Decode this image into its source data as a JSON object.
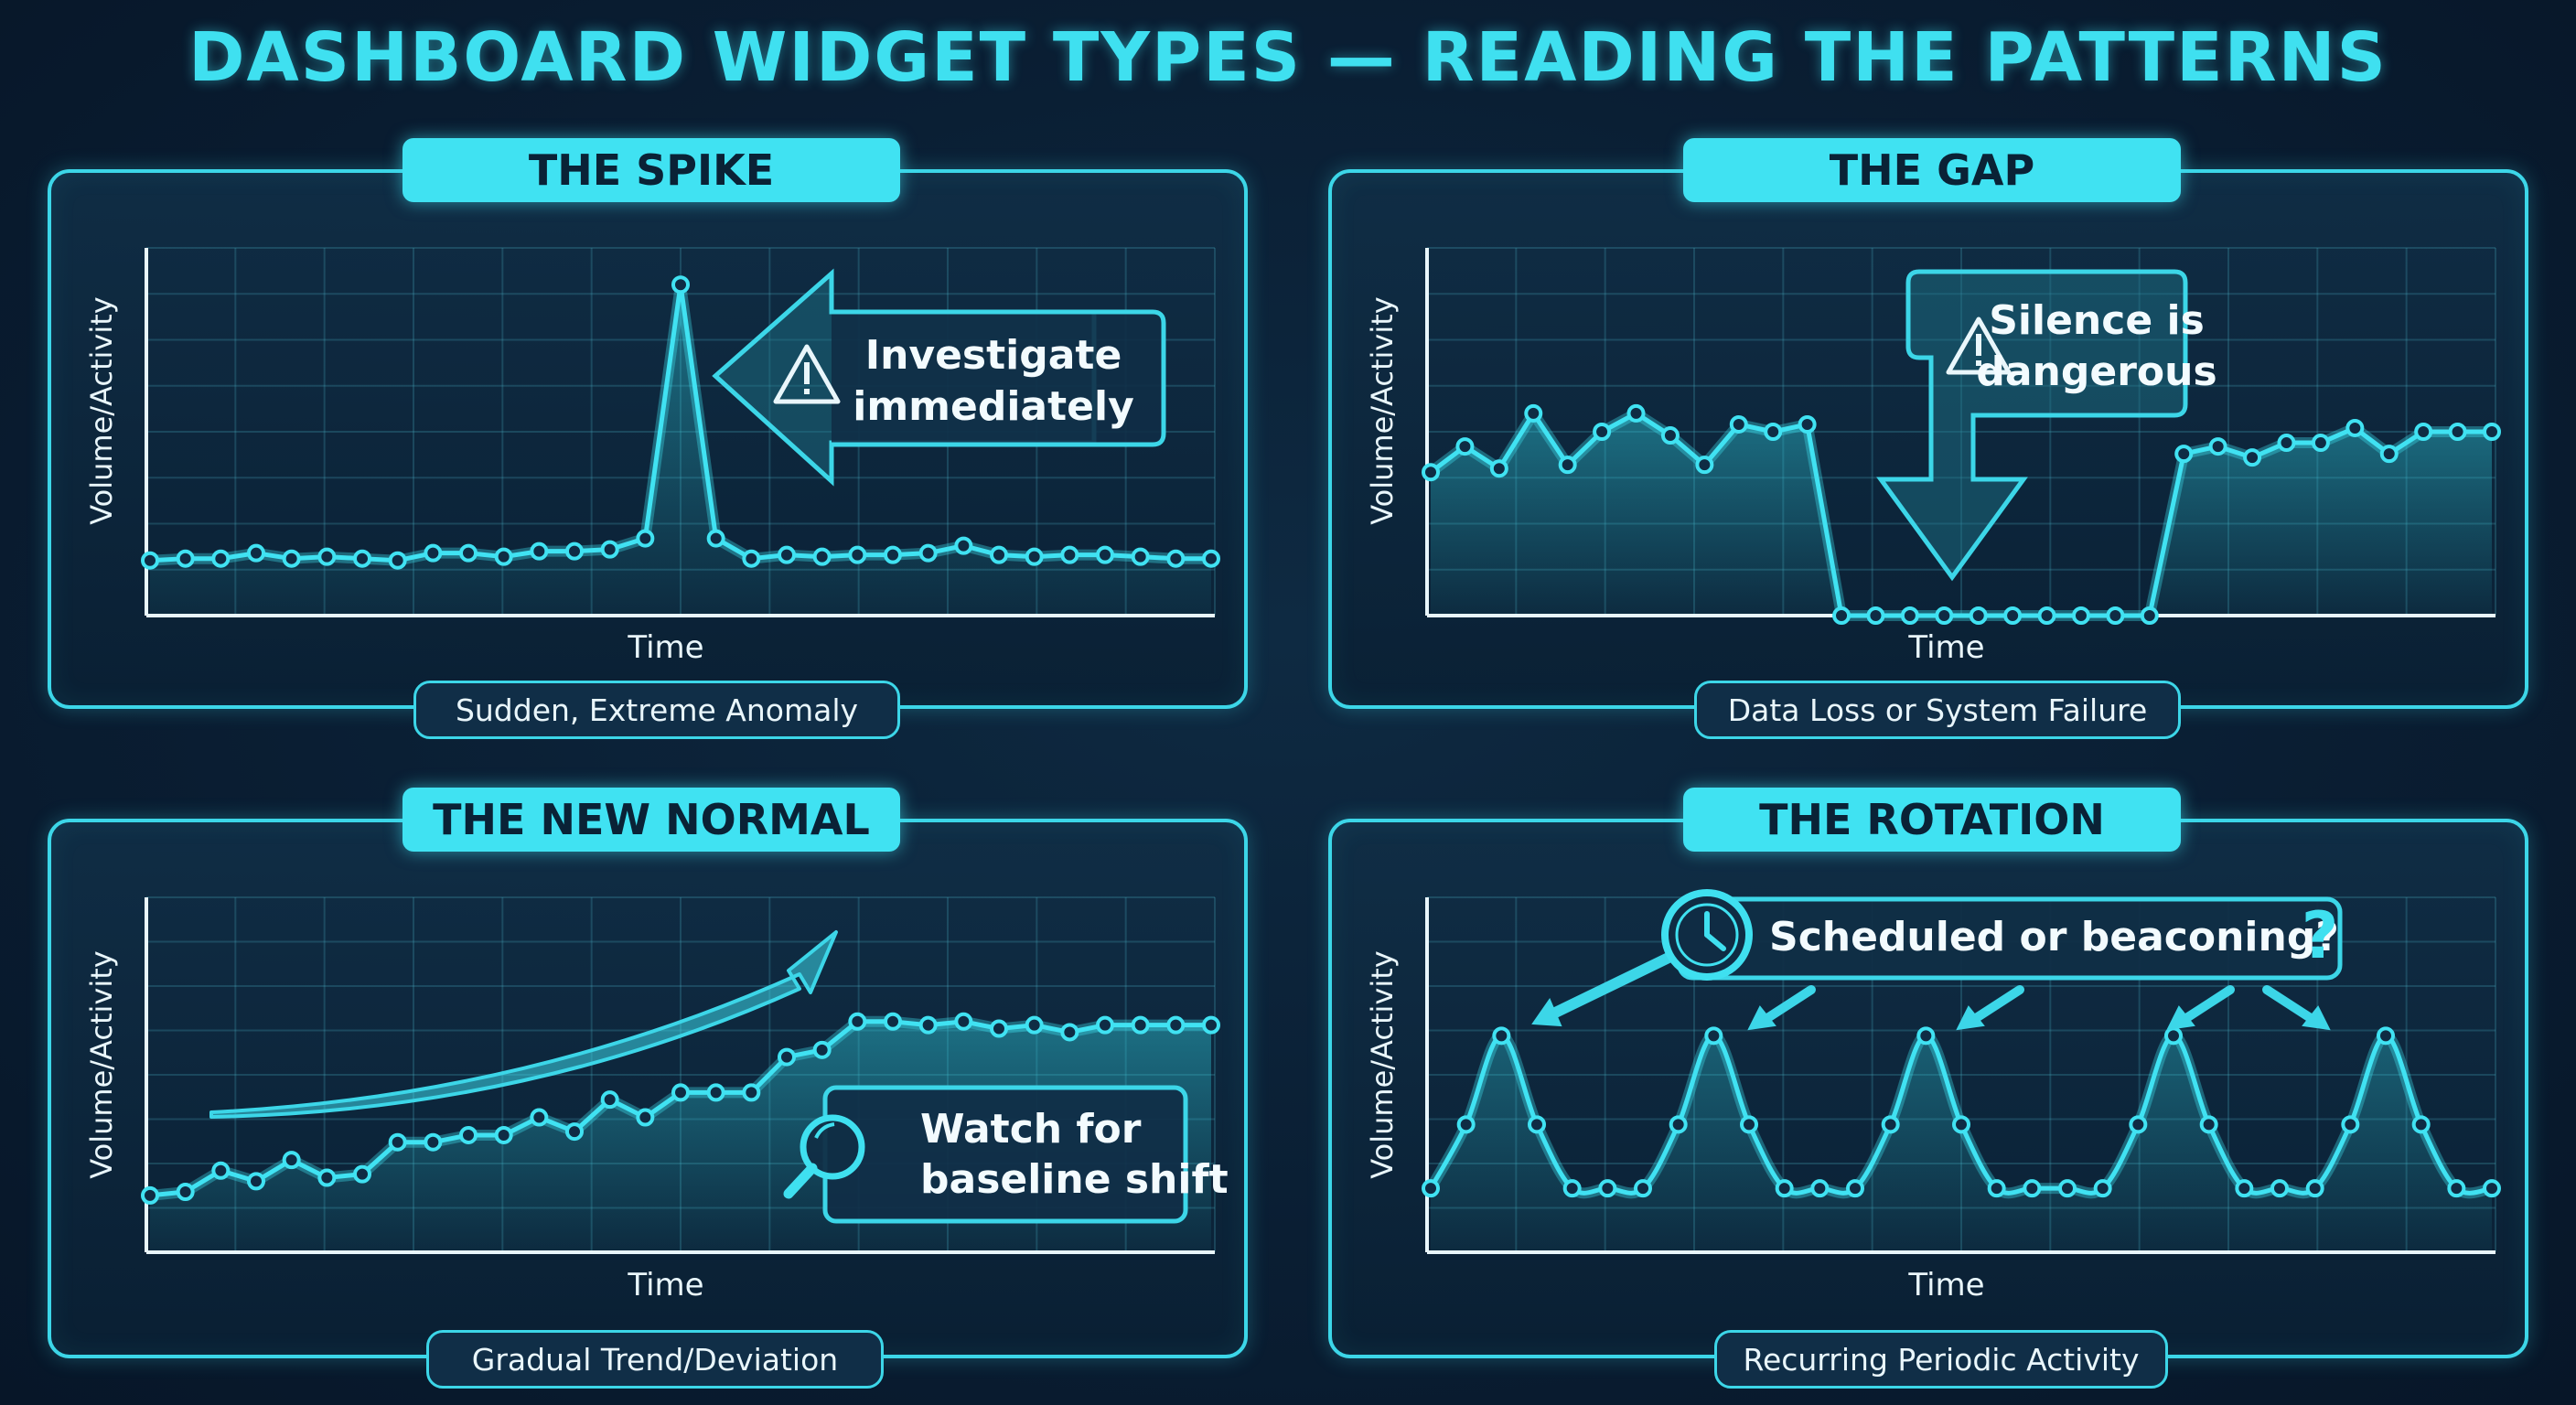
{
  "title": "DASHBOARD WIDGET TYPES — READING THE PATTERNS",
  "colors": {
    "accent": "#40e2f2",
    "background": "#0a1e33",
    "panel": "#102e47",
    "text": "#e9f6fb"
  },
  "panels": [
    {
      "key": "spike",
      "title": "THE SPIKE",
      "caption": "Sudden, Extreme Anomaly",
      "callout": [
        "Investigate",
        "immediately"
      ],
      "callout_icon": "warning-icon"
    },
    {
      "key": "gap",
      "title": "THE GAP",
      "caption": "Data Loss or System Failure",
      "callout": [
        "Silence is",
        "dangerous"
      ],
      "callout_icon": "warning-icon"
    },
    {
      "key": "new_normal",
      "title": "THE NEW NORMAL",
      "caption": "Gradual Trend/Deviation",
      "callout": [
        "Watch for",
        "baseline shift"
      ],
      "callout_icon": "magnifier-icon"
    },
    {
      "key": "rotation",
      "title": "THE ROTATION",
      "caption": "Recurring Periodic Activity",
      "callout": [
        "Scheduled or beaconing?"
      ],
      "callout_icon": "clock-icon",
      "callout_mark": "?"
    }
  ],
  "chart_data": [
    {
      "type": "area",
      "title": "THE SPIKE",
      "xlabel": "Time",
      "ylabel": "Volume/Activity",
      "ylim": [
        0,
        100
      ],
      "grid": true,
      "x": [
        1,
        2,
        3,
        4,
        5,
        6,
        7,
        8,
        9,
        10,
        11,
        12,
        13,
        14,
        15,
        16,
        17,
        18,
        19,
        20,
        21,
        22,
        23,
        24,
        25,
        26,
        27,
        28,
        29,
        30,
        31
      ],
      "values": [
        15,
        15.5,
        15.5,
        17,
        15.5,
        16,
        15.5,
        15,
        17,
        17,
        16,
        17.5,
        17.5,
        18,
        21,
        90,
        21,
        15.5,
        16.5,
        16,
        16.5,
        16.5,
        17,
        19,
        16.5,
        16,
        16.5,
        16.5,
        16,
        15.5,
        15.5
      ]
    },
    {
      "type": "area",
      "title": "THE GAP",
      "xlabel": "Time",
      "ylabel": "Volume/Activity",
      "ylim": [
        0,
        100
      ],
      "grid": true,
      "x": [
        1,
        2,
        3,
        4,
        5,
        6,
        7,
        8,
        9,
        10,
        11,
        12,
        13,
        14,
        15,
        16,
        17,
        18,
        19,
        20,
        21,
        22,
        23,
        24,
        25,
        26,
        27,
        28,
        29,
        30,
        31,
        32
      ],
      "values": [
        39,
        46,
        40,
        55,
        41,
        50,
        55,
        49,
        41,
        52,
        50,
        52,
        0,
        0,
        0,
        0,
        0,
        0,
        0,
        0,
        0,
        0,
        44,
        46,
        43,
        47,
        47,
        51,
        44,
        50,
        50,
        50
      ]
    },
    {
      "type": "area",
      "title": "THE NEW NORMAL",
      "xlabel": "Time",
      "ylabel": "Volume/Activity",
      "ylim": [
        0,
        100
      ],
      "grid": true,
      "x": [
        1,
        2,
        3,
        4,
        5,
        6,
        7,
        8,
        9,
        10,
        11,
        12,
        13,
        14,
        15,
        16,
        17,
        18,
        19,
        20,
        21,
        22,
        23,
        24,
        25,
        26,
        27,
        28,
        29,
        30,
        31
      ],
      "values": [
        16,
        17,
        23,
        20,
        26,
        21,
        22,
        31,
        31,
        33,
        33,
        38,
        34,
        43,
        38,
        45,
        45,
        45,
        55,
        57,
        65,
        65,
        64,
        65,
        63,
        64,
        62,
        64,
        64,
        64,
        64
      ]
    },
    {
      "type": "line",
      "title": "THE ROTATION",
      "xlabel": "Time",
      "ylabel": "Volume/Activity",
      "ylim": [
        0,
        100
      ],
      "grid": true,
      "x": [
        1,
        2,
        3,
        4,
        5,
        6,
        7,
        8,
        9,
        10,
        11,
        12,
        13,
        14,
        15,
        16,
        17,
        18,
        19,
        20,
        21,
        22,
        23,
        24,
        25,
        26,
        27,
        28,
        29,
        30,
        31
      ],
      "values": [
        18,
        36,
        61,
        36,
        18,
        18,
        18,
        36,
        61,
        36,
        18,
        18,
        18,
        36,
        61,
        36,
        18,
        18,
        18,
        18,
        36,
        61,
        36,
        18,
        18,
        18,
        36,
        61,
        36,
        18,
        18
      ]
    }
  ]
}
